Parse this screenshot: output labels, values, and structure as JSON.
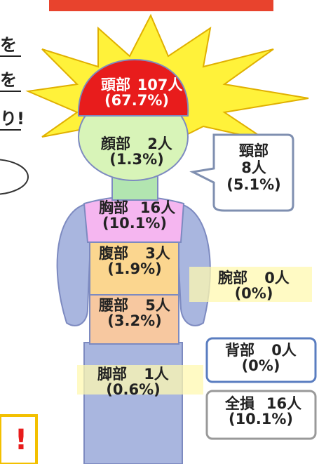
{
  "side_text": [
    "を",
    "を",
    "り!"
  ],
  "corner_text": "!",
  "parts": [
    {
      "name": "頭部",
      "count": "107人",
      "percent": "(67.7%)"
    },
    {
      "name": "顔部",
      "count": "2人",
      "percent": "(1.3%)"
    },
    {
      "name": "頸部",
      "count": "8人",
      "percent": "(5.1%)"
    },
    {
      "name": "胸部",
      "count": "16人",
      "percent": "(10.1%)"
    },
    {
      "name": "腹部",
      "count": "3人",
      "percent": "(1.9%)"
    },
    {
      "name": "腰部",
      "count": "5人",
      "percent": "(3.2%)"
    },
    {
      "name": "腕部",
      "count": "0人",
      "percent": "(0%)"
    },
    {
      "name": "脚部",
      "count": "1人",
      "percent": "(0.6%)"
    },
    {
      "name": "背部",
      "count": "0人",
      "percent": "(0%)"
    },
    {
      "name": "全損",
      "count": "16人",
      "percent": "(10.1%)"
    }
  ]
}
